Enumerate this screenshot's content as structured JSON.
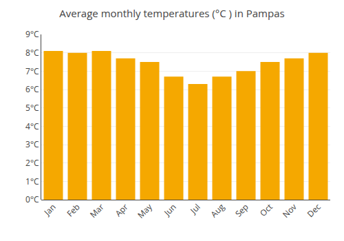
{
  "chart_data": {
    "type": "bar",
    "title": "Average monthly temperatures (°C ) in Pampas",
    "categories": [
      "Jan",
      "Feb",
      "Mar",
      "Apr",
      "May",
      "Jun",
      "Jul",
      "Aug",
      "Sep",
      "Oct",
      "Nov",
      "Dec"
    ],
    "values": [
      8.1,
      8.0,
      8.1,
      7.7,
      7.5,
      6.7,
      6.3,
      6.7,
      7.0,
      7.5,
      7.7,
      8.0
    ],
    "color": "#F5A800",
    "ylim": [
      0,
      9
    ],
    "yticks": [
      {
        "value": 0,
        "label": "0°C"
      },
      {
        "value": 1,
        "label": "1°C"
      },
      {
        "value": 2,
        "label": "2°C"
      },
      {
        "value": 3,
        "label": "3°C"
      },
      {
        "value": 4,
        "label": "4°C"
      },
      {
        "value": 5,
        "label": "5°C"
      },
      {
        "value": 6,
        "label": "6°C"
      },
      {
        "value": 7,
        "label": "7°C"
      },
      {
        "value": 8,
        "label": "8°C"
      },
      {
        "value": 9,
        "label": "9°C"
      }
    ],
    "grid": true
  }
}
